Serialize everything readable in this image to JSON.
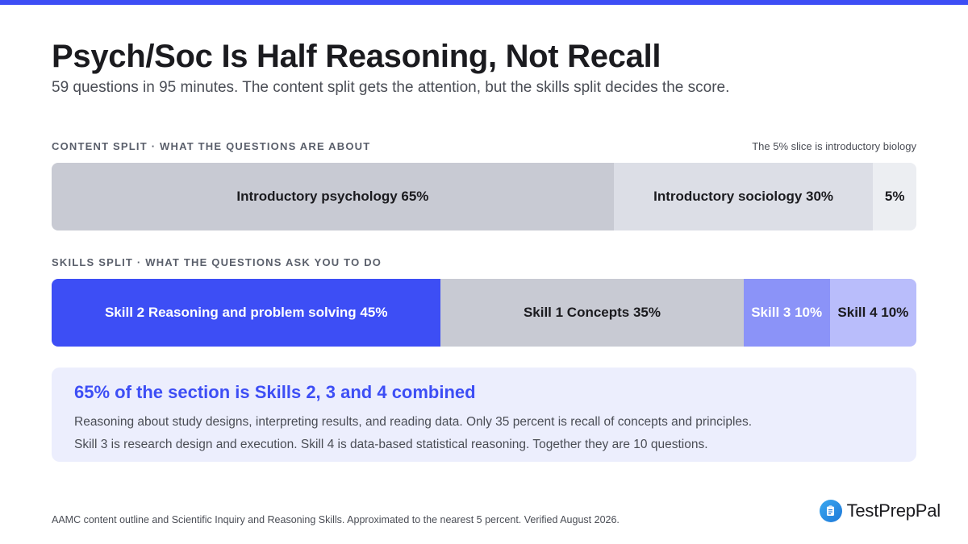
{
  "header": {
    "title": "Psych/Soc Is Half Reasoning, Not Recall",
    "subtitle": "59 questions in 95 minutes. The content split gets the attention, but the skills split decides the score."
  },
  "chart_data": [
    {
      "type": "bar",
      "stacked": true,
      "orientation": "horizontal",
      "title": "CONTENT SPLIT · WHAT THE QUESTIONS ARE ABOUT",
      "note": "The 5% slice is introductory biology",
      "unit": "percent",
      "series": [
        {
          "label": "Introductory psychology 65%",
          "value": 65,
          "color": "#c8cad3",
          "text_color": "#1b1b1f"
        },
        {
          "label": "Introductory sociology 30%",
          "value": 30,
          "color": "#dcdee6",
          "text_color": "#1b1b1f"
        },
        {
          "label": "5%",
          "value": 5,
          "color": "#eceef2",
          "text_color": "#1b1b1f"
        }
      ]
    },
    {
      "type": "bar",
      "stacked": true,
      "orientation": "horizontal",
      "title": "SKILLS SPLIT · WHAT THE QUESTIONS ASK YOU TO DO",
      "unit": "percent",
      "series": [
        {
          "label": "Skill 2 Reasoning and problem solving 45%",
          "value": 45,
          "color": "#3d4ef5",
          "text_color": "#ffffff"
        },
        {
          "label": "Skill 1 Concepts 35%",
          "value": 35,
          "color": "#c8cad3",
          "text_color": "#1b1b1f"
        },
        {
          "label": "Skill 3 10%",
          "value": 10,
          "color": "#8b93f8",
          "text_color": "#ffffff"
        },
        {
          "label": "Skill 4 10%",
          "value": 10,
          "color": "#b9bdfb",
          "text_color": "#1b1b1f"
        }
      ]
    }
  ],
  "callout": {
    "heading": "65% of the section is Skills 2, 3 and 4 combined",
    "line1": "Reasoning about study designs, interpreting results, and reading data. Only 35 percent is recall of concepts and principles.",
    "line2": "Skill 3 is research design and execution. Skill 4 is data-based statistical reasoning. Together they are 10 questions."
  },
  "footer": {
    "source": "AAMC content outline and Scientific Inquiry and Reasoning Skills. Approximated to the nearest 5 percent. Verified August 2026."
  },
  "brand": {
    "name": "TestPrepPal",
    "icon": "clipboard-icon",
    "accent": "#3d4ef5"
  }
}
